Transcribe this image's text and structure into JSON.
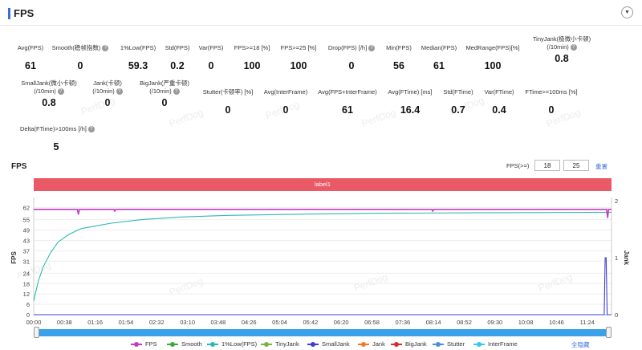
{
  "header": {
    "title": "FPS",
    "collapse_icon": "▼"
  },
  "metrics_row1": [
    {
      "label": "Avg(FPS)",
      "value": "61",
      "help": false
    },
    {
      "label": "Smooth(稳帧指数)",
      "value": "0",
      "help": true
    },
    {
      "label": "1%Low(FPS)",
      "value": "59.3",
      "help": false
    },
    {
      "label": "Std(FPS)",
      "value": "0.2",
      "help": false
    },
    {
      "label": "Var(FPS)",
      "value": "0",
      "help": false
    },
    {
      "label": "FPS>=18 [%]",
      "value": "100",
      "help": false
    },
    {
      "label": "FPS>=25 [%]",
      "value": "100",
      "help": false
    },
    {
      "label": "Drop(FPS) [/h]",
      "value": "0",
      "help": true
    },
    {
      "label": "Min(FPS)",
      "value": "56",
      "help": false
    },
    {
      "label": "Median(FPS)",
      "value": "61",
      "help": false
    },
    {
      "label": "MedRange(FPS)[%]",
      "value": "100",
      "help": false
    },
    {
      "label": "TinyJank(极微小卡顿)",
      "label2": "(/10min)",
      "value": "0.8",
      "help": true
    }
  ],
  "metrics_row2": [
    {
      "label": "SmallJank(微小卡顿)",
      "label2": "(/10min)",
      "value": "0.8",
      "help": true
    },
    {
      "label": "Jank(卡顿)",
      "label2": "(/10min)",
      "value": "0",
      "help": true
    },
    {
      "label": "BigJank(严重卡顿)",
      "label2": "(/10min)",
      "value": "0",
      "help": true
    },
    {
      "label": "Stutter(卡顿率) [%]",
      "value": "0",
      "help": false
    },
    {
      "label": "Avg(InterFrame)",
      "value": "0",
      "help": false
    },
    {
      "label": "Avg(FPS+InterFrame)",
      "value": "61",
      "help": false
    },
    {
      "label": "Avg(FTime) [ms]",
      "value": "16.4",
      "help": false
    },
    {
      "label": "Std(FTime)",
      "value": "0.7",
      "help": false
    },
    {
      "label": "Var(FTime)",
      "value": "0.4",
      "help": false
    },
    {
      "label": "FTime>=100ms [%]",
      "value": "0",
      "help": false
    }
  ],
  "metrics_row3": [
    {
      "label": "Delta(FTime)>100ms [/h]",
      "value": "5",
      "help": true
    }
  ],
  "watermark": "PerfDog",
  "fps_panel": {
    "title": "FPS",
    "threshold_label": "FPS(>=)",
    "threshold_1": "18",
    "threshold_2": "25",
    "reset_label": "重置",
    "band_label": "label1"
  },
  "chart_data": {
    "type": "line",
    "ylabel_left": "FPS",
    "ylabel_right": "Jank",
    "y_ticks_left": [
      0,
      6,
      12,
      18,
      24,
      31,
      37,
      43,
      49,
      55,
      62
    ],
    "y_ticks_right": [
      0,
      1,
      2
    ],
    "x_ticks": [
      "00:00",
      "00:38",
      "01:16",
      "01:54",
      "02:32",
      "03:10",
      "03:48",
      "04:26",
      "05:04",
      "05:42",
      "06:20",
      "06:58",
      "07:36",
      "08:14",
      "08:52",
      "09:30",
      "10:08",
      "10:46",
      "11:24"
    ],
    "x_tick_minutes": [
      0,
      0.633,
      1.267,
      1.9,
      2.533,
      3.167,
      3.8,
      4.433,
      5.067,
      5.7,
      6.333,
      6.967,
      7.6,
      8.233,
      8.867,
      9.5,
      10.133,
      10.767,
      11.4
    ],
    "x_range_minutes": [
      0,
      11.9
    ],
    "ylim_left": [
      0,
      66
    ],
    "ylim_right": [
      0,
      2
    ],
    "series": [
      {
        "name": "FPS",
        "color": "#c23cc2",
        "axis": "left",
        "x": [
          0,
          0.9,
          0.92,
          0.94,
          1.65,
          1.67,
          1.69,
          8.2,
          8.22,
          8.24,
          11.8,
          11.82,
          11.84,
          11.9
        ],
        "y": [
          61,
          61,
          58,
          61,
          61,
          60,
          61,
          61,
          60,
          61,
          61,
          56,
          61,
          61
        ]
      },
      {
        "name": "Smooth",
        "color": "#3daa3d",
        "axis": "left",
        "x": [
          0,
          11.9
        ],
        "y": [
          0,
          0
        ]
      },
      {
        "name": "1%Low(FPS)",
        "color": "#2fb8b0",
        "axis": "left",
        "x": [
          0,
          0.05,
          0.1,
          0.2,
          0.35,
          0.5,
          0.7,
          0.9,
          1.0,
          1.2,
          1.6,
          2.2,
          3.0,
          4.0,
          5.5,
          7.0,
          9.0,
          11.9
        ],
        "y": [
          8,
          14,
          20,
          28,
          36,
          42,
          46,
          49,
          50,
          51,
          53,
          55,
          56.5,
          57.5,
          58.2,
          58.7,
          59.0,
          59.3
        ]
      },
      {
        "name": "TinyJank",
        "color": "#7cb342",
        "axis": "right",
        "x": [
          0,
          11.9
        ],
        "y": [
          0,
          0
        ]
      },
      {
        "name": "SmallJank",
        "color": "#3f3fd0",
        "axis": "right",
        "x": [
          0,
          11.75,
          11.77,
          11.79,
          11.81,
          11.9
        ],
        "y": [
          0,
          0,
          1,
          1,
          0,
          0
        ]
      },
      {
        "name": "Jank",
        "color": "#f07a2a",
        "axis": "right",
        "x": [
          0,
          11.9
        ],
        "y": [
          0,
          0
        ]
      },
      {
        "name": "BigJank",
        "color": "#d32f2f",
        "axis": "right",
        "x": [
          0,
          11.9
        ],
        "y": [
          0,
          0
        ]
      },
      {
        "name": "Stutter",
        "color": "#4a8fe0",
        "axis": "right",
        "x": [
          0,
          11.9
        ],
        "y": [
          0,
          0
        ]
      },
      {
        "name": "InterFrame",
        "color": "#36c8e8",
        "axis": "left",
        "x": [
          0,
          11.9
        ],
        "y": [
          0,
          0
        ]
      }
    ]
  },
  "legend": {
    "items": [
      {
        "name": "FPS",
        "color": "#c23cc2"
      },
      {
        "name": "Smooth",
        "color": "#3daa3d"
      },
      {
        "name": "1%Low(FPS)",
        "color": "#2fb8b0"
      },
      {
        "name": "TinyJank",
        "color": "#7cb342"
      },
      {
        "name": "SmallJank",
        "color": "#3f3fd0"
      },
      {
        "name": "Jank",
        "color": "#f07a2a"
      },
      {
        "name": "BigJank",
        "color": "#d32f2f"
      },
      {
        "name": "Stutter",
        "color": "#4a8fe0"
      },
      {
        "name": "InterFrame",
        "color": "#36c8e8"
      }
    ],
    "hide_all_label": "全隐藏"
  }
}
